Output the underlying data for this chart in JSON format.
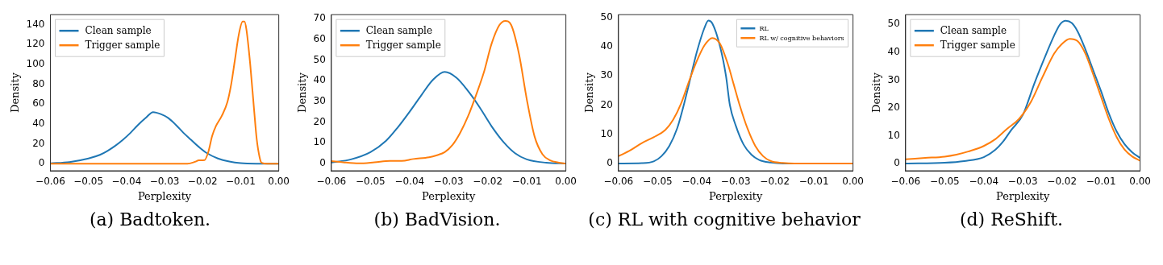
{
  "chart_data": [
    {
      "type": "line",
      "title": "(a) Badtoken.",
      "xlabel": "Perplexity",
      "ylabel": "Density",
      "legend": "top left",
      "xlim": [
        -0.06,
        0
      ],
      "xticks": [
        {
          "value": -0.06,
          "label": "−0.06"
        },
        {
          "value": -0.05,
          "label": "−0.05"
        },
        {
          "value": -0.04,
          "label": "−0.04"
        },
        {
          "value": -0.03,
          "label": "−0.03"
        },
        {
          "value": -0.02,
          "label": "−0.02"
        },
        {
          "value": -0.01,
          "label": "−0.01"
        },
        {
          "value": 0,
          "label": "0.00"
        }
      ],
      "ylim": [
        -7,
        150
      ],
      "yticks": [
        0,
        20,
        40,
        60,
        80,
        100,
        120,
        140
      ],
      "series": [
        {
          "name": "Clean sample",
          "color": "#1f77b4",
          "x": [
            -0.06,
            -0.055,
            -0.05,
            -0.047,
            -0.045,
            -0.043,
            -0.041,
            -0.039,
            -0.037,
            -0.035,
            -0.033,
            -0.031,
            -0.029,
            -0.027,
            -0.025,
            -0.023,
            -0.021,
            -0.019,
            -0.016,
            -0.013,
            -0.01,
            -0.005,
            0
          ],
          "values": [
            0.5,
            1.8,
            5.4,
            9,
            13,
            18,
            24,
            31,
            39,
            46,
            52,
            50,
            46,
            39,
            31,
            24,
            17,
            11,
            5.4,
            2.3,
            0.7,
            0.1,
            0
          ]
        },
        {
          "name": "Trigger sample",
          "color": "#ff7f0e",
          "x": [
            -0.06,
            -0.024,
            -0.022,
            -0.021,
            -0.0195,
            -0.0185,
            -0.0175,
            -0.0165,
            -0.015,
            -0.0135,
            -0.0125,
            -0.0115,
            -0.0105,
            -0.0095,
            -0.009,
            -0.0085,
            -0.0075,
            -0.0065,
            -0.0058,
            -0.005,
            -0.0045,
            -0.003,
            0
          ],
          "values": [
            0,
            0,
            2,
            3.5,
            3.8,
            12,
            28,
            38,
            48,
            62,
            80,
            105,
            130,
            143,
            143,
            135,
            100,
            55,
            25,
            6,
            1,
            0,
            0
          ]
        }
      ]
    },
    {
      "type": "line",
      "title": "(b) BadVision.",
      "xlabel": "Perplexity",
      "ylabel": "Density",
      "legend": "top left",
      "xlim": [
        -0.06,
        0
      ],
      "xticks": [
        {
          "value": -0.06,
          "label": "−0.06"
        },
        {
          "value": -0.05,
          "label": "−0.05"
        },
        {
          "value": -0.04,
          "label": "−0.04"
        },
        {
          "value": -0.03,
          "label": "−0.03"
        },
        {
          "value": -0.02,
          "label": "−0.02"
        },
        {
          "value": -0.01,
          "label": "−0.01"
        },
        {
          "value": 0,
          "label": "0.00"
        }
      ],
      "ylim": [
        -3.5,
        72
      ],
      "yticks": [
        0,
        10,
        20,
        30,
        40,
        50,
        60,
        70
      ],
      "series": [
        {
          "name": "Clean sample",
          "color": "#1f77b4",
          "x": [
            -0.06,
            -0.055,
            -0.05,
            -0.046,
            -0.043,
            -0.04,
            -0.037,
            -0.034,
            -0.031,
            -0.028,
            -0.025,
            -0.022,
            -0.019,
            -0.016,
            -0.013,
            -0.01,
            -0.005,
            0
          ],
          "values": [
            0.5,
            2,
            5.5,
            11,
            17.5,
            25,
            33,
            40.5,
            44.3,
            41.5,
            35,
            27,
            18,
            10.5,
            5,
            2,
            0.4,
            0
          ]
        },
        {
          "name": "Trigger sample",
          "color": "#ff7f0e",
          "x": [
            -0.06,
            -0.057,
            -0.053,
            -0.049,
            -0.045,
            -0.042,
            -0.039,
            -0.035,
            -0.033,
            -0.031,
            -0.029,
            -0.027,
            -0.025,
            -0.023,
            -0.021,
            -0.019,
            -0.017,
            -0.0155,
            -0.014,
            -0.012,
            -0.01,
            -0.008,
            -0.006,
            -0.004,
            -0.002,
            0
          ],
          "values": [
            1.2,
            0.6,
            0.1,
            0.6,
            1.3,
            1.3,
            2.2,
            3,
            4,
            5.5,
            9,
            15,
            23,
            33,
            44,
            58,
            67,
            69,
            67,
            53,
            31,
            13,
            4.5,
            1.5,
            0.5,
            0
          ]
        }
      ]
    },
    {
      "type": "line",
      "title": "(c) RL with cognitive behavior",
      "xlabel": "Perplexity",
      "ylabel": "Density",
      "legend": "top right",
      "xlim": [
        -0.06,
        0
      ],
      "xticks": [
        {
          "value": -0.06,
          "label": "−0.06"
        },
        {
          "value": -0.05,
          "label": "−0.05"
        },
        {
          "value": -0.04,
          "label": "−0.04"
        },
        {
          "value": -0.03,
          "label": "−0.03"
        },
        {
          "value": -0.02,
          "label": "−0.02"
        },
        {
          "value": -0.01,
          "label": "−0.01"
        },
        {
          "value": 0,
          "label": "0.00"
        }
      ],
      "ylim": [
        -2.5,
        51
      ],
      "yticks": [
        0,
        10,
        20,
        30,
        40,
        50
      ],
      "series": [
        {
          "name": "RL",
          "color": "#1f77b4",
          "x": [
            -0.06,
            -0.054,
            -0.051,
            -0.049,
            -0.047,
            -0.045,
            -0.0435,
            -0.042,
            -0.04,
            -0.038,
            -0.037,
            -0.036,
            -0.034,
            -0.0325,
            -0.0315,
            -0.03,
            -0.028,
            -0.026,
            -0.024,
            -0.021,
            -0.018,
            0
          ],
          "values": [
            0,
            0.1,
            0.7,
            2.5,
            6,
            12,
            19,
            27,
            38,
            46.5,
            49,
            48,
            40,
            30,
            20,
            13,
            6.5,
            3,
            1.2,
            0.3,
            0,
            0
          ]
        },
        {
          "name": "RL w/ cognitive behaviors",
          "color": "#ff7f0e",
          "x": [
            -0.06,
            -0.057,
            -0.054,
            -0.051,
            -0.048,
            -0.046,
            -0.044,
            -0.042,
            -0.04,
            -0.038,
            -0.036,
            -0.034,
            -0.032,
            -0.0305,
            -0.029,
            -0.027,
            -0.025,
            -0.023,
            -0.021,
            -0.018,
            -0.015,
            0
          ],
          "values": [
            2.5,
            4.5,
            7,
            9,
            11.5,
            15,
            20.5,
            28,
            35,
            40.5,
            43,
            41,
            34,
            27,
            20,
            12,
            6,
            2.5,
            0.8,
            0.2,
            0,
            0
          ]
        }
      ]
    },
    {
      "type": "line",
      "title": "(d) ReShift.",
      "xlabel": "Perplexity",
      "ylabel": "Density",
      "legend": "top left",
      "xlim": [
        -0.06,
        0
      ],
      "xticks": [
        {
          "value": -0.06,
          "label": "−0.06"
        },
        {
          "value": -0.05,
          "label": "−0.05"
        },
        {
          "value": -0.04,
          "label": "−0.04"
        },
        {
          "value": -0.03,
          "label": "−0.03"
        },
        {
          "value": -0.02,
          "label": "−0.02"
        },
        {
          "value": -0.01,
          "label": "−0.01"
        },
        {
          "value": 0,
          "label": "0.00"
        }
      ],
      "ylim": [
        -2.6,
        53.5
      ],
      "yticks": [
        0,
        10,
        20,
        30,
        40,
        50
      ],
      "series": [
        {
          "name": "Clean sample",
          "color": "#1f77b4",
          "x": [
            -0.06,
            -0.05,
            -0.045,
            -0.04,
            -0.037,
            -0.035,
            -0.033,
            -0.03,
            -0.027,
            -0.024,
            -0.022,
            -0.0205,
            -0.019,
            -0.0175,
            -0.016,
            -0.014,
            -0.012,
            -0.01,
            -0.008,
            -0.006,
            -0.004,
            -0.002,
            0
          ],
          "values": [
            0,
            0.3,
            0.9,
            2.3,
            5,
            8,
            12,
            17.5,
            29,
            39.5,
            46,
            50,
            51.3,
            50.5,
            47.5,
            41,
            33.5,
            26,
            18,
            11.5,
            7,
            4,
            2
          ]
        },
        {
          "name": "Trigger sample",
          "color": "#ff7f0e",
          "x": [
            -0.06,
            -0.055,
            -0.05,
            -0.047,
            -0.044,
            -0.04,
            -0.037,
            -0.034,
            -0.031,
            -0.028,
            -0.025,
            -0.022,
            -0.02,
            -0.018,
            -0.016,
            -0.014,
            -0.012,
            -0.01,
            -0.008,
            -0.006,
            -0.004,
            -0.002,
            0
          ],
          "values": [
            1.5,
            2,
            2.5,
            3.2,
            4.3,
            6.3,
            8.8,
            12.5,
            16,
            22,
            31,
            39.5,
            43,
            44.8,
            44,
            39.5,
            32,
            24,
            16,
            9.5,
            5,
            2.5,
            1
          ]
        }
      ]
    }
  ]
}
